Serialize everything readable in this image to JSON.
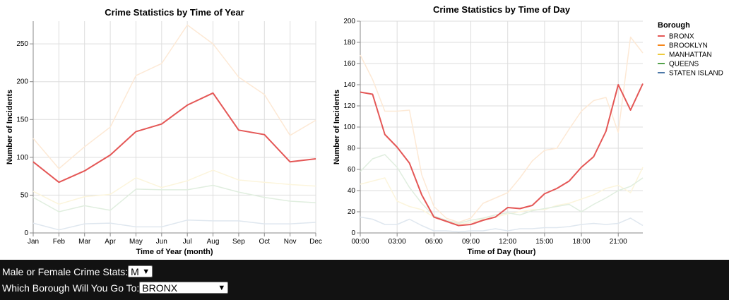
{
  "colors": {
    "BRONX": "#e45756",
    "BROOKLYN": "#f58518",
    "MANHATTAN": "#eeca3b",
    "QUEENS": "#54a24b",
    "STATEN ISLAND": "#4c78a8",
    "background": "#121212"
  },
  "chart_data": [
    {
      "type": "line",
      "title": "Crime Statistics by Time of Year",
      "xlabel": "Time of Year (month)",
      "ylabel": "Number of Incidents",
      "categories": [
        "Jan",
        "Feb",
        "Mar",
        "Apr",
        "May",
        "Jun",
        "Jul",
        "Aug",
        "Sep",
        "Oct",
        "Nov",
        "Dec"
      ],
      "yticks": [
        0,
        50,
        100,
        150,
        200,
        250
      ],
      "ylim": [
        0,
        280
      ],
      "grid": true,
      "highlight": "BRONX",
      "series": [
        {
          "name": "BRONX",
          "values": [
            94,
            67,
            82,
            103,
            134,
            144,
            169,
            185,
            136,
            130,
            94,
            98
          ]
        },
        {
          "name": "BROOKLYN",
          "values": [
            125,
            85,
            114,
            140,
            208,
            224,
            275,
            250,
            206,
            183,
            129,
            149
          ]
        },
        {
          "name": "MANHATTAN",
          "values": [
            55,
            38,
            48,
            51,
            73,
            60,
            69,
            83,
            70,
            67,
            64,
            62
          ]
        },
        {
          "name": "QUEENS",
          "values": [
            47,
            28,
            36,
            30,
            58,
            57,
            57,
            63,
            54,
            47,
            42,
            40
          ]
        },
        {
          "name": "STATEN ISLAND",
          "values": [
            13,
            4,
            12,
            13,
            8,
            8,
            17,
            16,
            16,
            12,
            12,
            14
          ]
        }
      ]
    },
    {
      "type": "line",
      "title": "Crime Statistics by Time of Day",
      "xlabel": "Time of Day (hour)",
      "ylabel": "Number of Incidents",
      "x": [
        0,
        1,
        2,
        3,
        4,
        5,
        6,
        7,
        8,
        9,
        10,
        11,
        12,
        13,
        14,
        15,
        16,
        17,
        18,
        19,
        20,
        21,
        22,
        23
      ],
      "xticks": [
        0,
        3,
        6,
        9,
        12,
        15,
        18,
        21
      ],
      "xtick_labels": [
        "00:00",
        "03:00",
        "06:00",
        "09:00",
        "12:00",
        "15:00",
        "18:00",
        "21:00"
      ],
      "yticks": [
        0,
        20,
        40,
        60,
        80,
        100,
        120,
        140,
        160,
        180,
        200
      ],
      "ylim": [
        0,
        200
      ],
      "grid": true,
      "highlight": "BRONX",
      "legend_title": "Borough",
      "legend_position": "right",
      "series": [
        {
          "name": "BRONX",
          "values": [
            133,
            131,
            93,
            81,
            66,
            36,
            15,
            11,
            7,
            8,
            12,
            15,
            24,
            23,
            26,
            37,
            42,
            49,
            62,
            72,
            96,
            140,
            116,
            141
          ]
        },
        {
          "name": "BROOKLYN",
          "values": [
            168,
            145,
            115,
            115,
            116,
            55,
            25,
            14,
            10,
            14,
            28,
            33,
            38,
            52,
            68,
            78,
            80,
            98,
            115,
            125,
            128,
            95,
            185,
            170
          ]
        },
        {
          "name": "MANHATTAN",
          "values": [
            46,
            49,
            52,
            30,
            25,
            22,
            15,
            12,
            8,
            10,
            13,
            15,
            18,
            20,
            22,
            22,
            26,
            28,
            32,
            36,
            42,
            45,
            38,
            62
          ]
        },
        {
          "name": "QUEENS",
          "values": [
            58,
            70,
            74,
            62,
            43,
            28,
            16,
            12,
            9,
            12,
            14,
            17,
            19,
            17,
            21,
            23,
            25,
            27,
            20,
            27,
            33,
            40,
            44,
            52
          ]
        },
        {
          "name": "STATEN ISLAND",
          "values": [
            15,
            13,
            8,
            8,
            13,
            7,
            2,
            2,
            1,
            2,
            2,
            4,
            2,
            4,
            4,
            5,
            5,
            6,
            8,
            9,
            8,
            9,
            14,
            7
          ]
        }
      ]
    }
  ],
  "controls": {
    "gender_label": "Male or Female Crime Stats:",
    "gender_value": "M",
    "borough_label": "Which Borough Will You Go To:",
    "borough_value": "BRONX"
  },
  "icons": {
    "dropdown": "chevron-down-icon"
  }
}
